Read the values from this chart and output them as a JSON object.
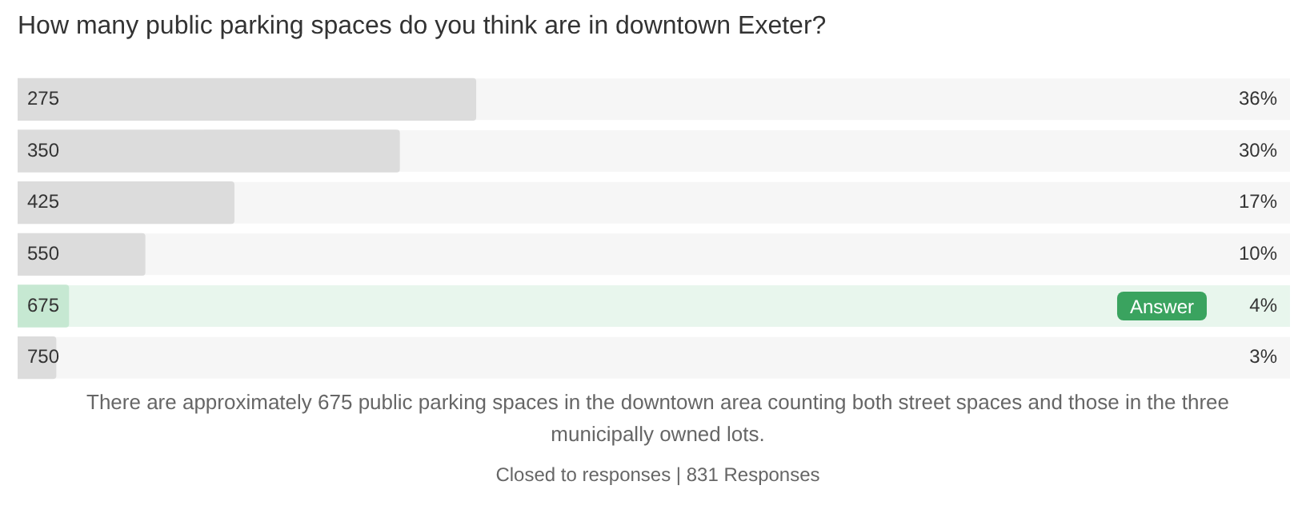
{
  "chart_data": {
    "type": "bar",
    "orientation": "horizontal",
    "title": "How many public parking spaces do you think are in downtown Exeter?",
    "categories": [
      "275",
      "350",
      "425",
      "550",
      "675",
      "750"
    ],
    "values": [
      36,
      30,
      17,
      10,
      4,
      3
    ],
    "value_labels": [
      "36%",
      "30%",
      "17%",
      "10%",
      "4%",
      "3%"
    ],
    "colors": [
      "#dcdcdc",
      "#dcdcdc",
      "#dcdcdc",
      "#dcdcdc",
      "#c6e8d2",
      "#dcdcdc"
    ],
    "xlim": [
      0,
      100
    ],
    "tick_labels": "y",
    "legend": false,
    "annotations": [
      "Answer",
      "There are approximately 675 public parking spaces in the downtown area counting both street spaces and those in the three municipally owned lots.",
      "Closed to responses | 831 Responses"
    ]
  }
}
